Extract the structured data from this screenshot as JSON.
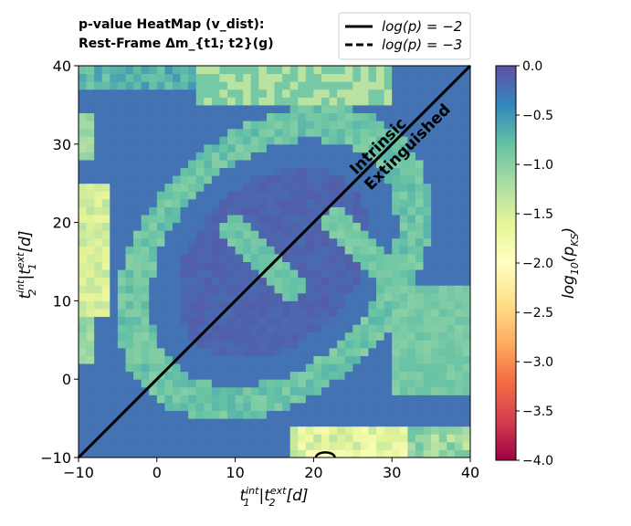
{
  "chart_data": {
    "type": "heatmap",
    "title_line1": "p-value HeatMap (v_dist):",
    "title_line2": "Rest-Frame Δm_{t1; t2}(g)",
    "xlabel": "t1^int|t2^ext[d]",
    "ylabel": "t2^int|t1^ext[d]",
    "xlim": [
      -10,
      40
    ],
    "ylim": [
      -10,
      40
    ],
    "x_ticks": [
      "−10",
      "0",
      "10",
      "20",
      "30",
      "40"
    ],
    "y_ticks": [
      "−10",
      "0",
      "10",
      "20",
      "30",
      "40"
    ],
    "colorbar": {
      "label": "log10(pKS)",
      "range": [
        -4.0,
        0.0
      ],
      "ticks": [
        "0.0",
        "−0.5",
        "−1.0",
        "−1.5",
        "−2.0",
        "−2.5",
        "−3.0",
        "−3.5",
        "−4.0"
      ],
      "colormap": "Spectral"
    },
    "legend": [
      {
        "label": "log(p) = −2",
        "style": "solid"
      },
      {
        "label": "log(p) = −3",
        "style": "dashed"
      }
    ],
    "diagonal": {
      "from": [
        -10,
        -10
      ],
      "to": [
        40,
        40
      ]
    },
    "region_labels": [
      "Intrinsic",
      "Extinguished"
    ],
    "contour": {
      "level": -2,
      "center": [
        21.5,
        -10
      ],
      "radius": 1.2
    },
    "pattern": {
      "base": -0.25,
      "deep_interior": -0.15,
      "bands": [
        {
          "kind": "diagonal_ring",
          "center_sum": 30,
          "width": 28,
          "value": -0.85
        },
        {
          "kind": "left_edge",
          "x_max": -5,
          "y_range": [
            10,
            25
          ],
          "value": -1.55
        },
        {
          "kind": "bottom_edge",
          "y_max": -6,
          "x_range": [
            17,
            32
          ],
          "value": -1.5
        },
        {
          "kind": "anti_diagonal_band",
          "value": -0.9
        }
      ]
    }
  }
}
